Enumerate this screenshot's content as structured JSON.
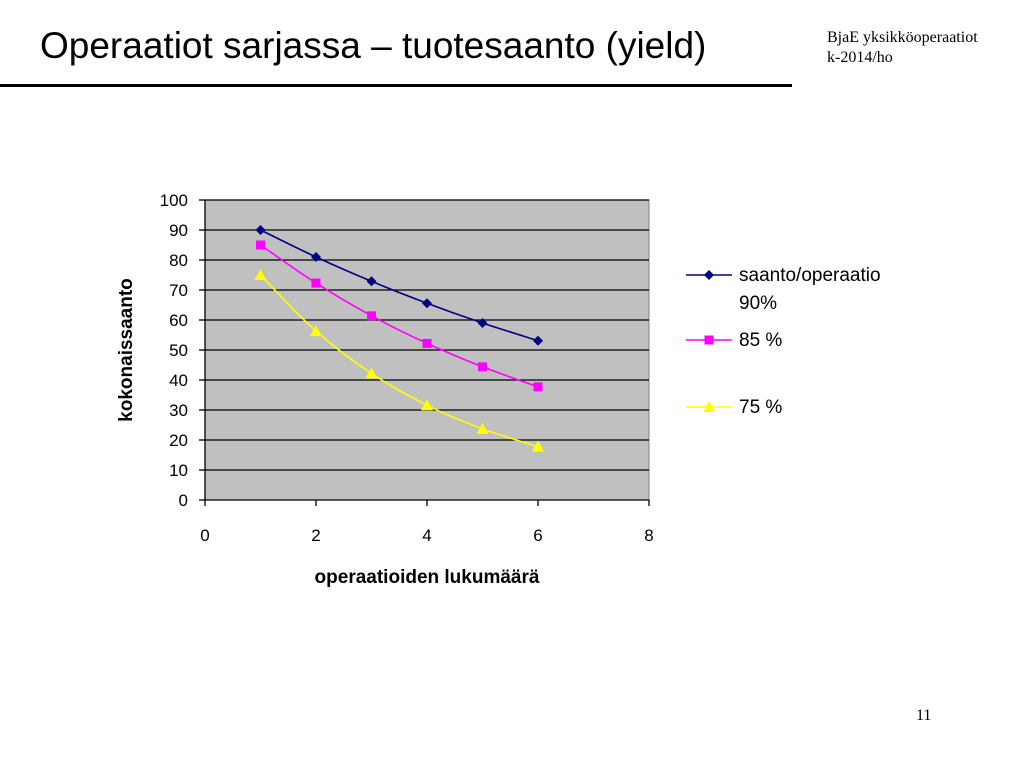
{
  "slide": {
    "title": "Operaatiot sarjassa – tuotesaanto (yield)",
    "note_line1": "BjaE yksikköoperaatiot",
    "note_line2": "k-2014/ho",
    "page_number": "11"
  },
  "chart_data": {
    "type": "line",
    "title": "",
    "xlabel": "operaatioiden lukumäärä",
    "ylabel": "kokonaissaanto",
    "xlim": [
      0,
      8
    ],
    "ylim": [
      0,
      100
    ],
    "xticks": [
      0,
      2,
      4,
      6,
      8
    ],
    "yticks": [
      0,
      10,
      20,
      30,
      40,
      50,
      60,
      70,
      80,
      90,
      100
    ],
    "grid": true,
    "plot_background": "#c0c0c0",
    "legend_position": "right",
    "x": [
      1,
      2,
      3,
      4,
      5,
      6
    ],
    "series": [
      {
        "name_lines": [
          "saanto/operaatio",
          "90%"
        ],
        "values": [
          90,
          81,
          72.9,
          65.6,
          59.0,
          53.1
        ],
        "color": "#000080",
        "marker": "diamond"
      },
      {
        "name_lines": [
          "85 %"
        ],
        "values": [
          85,
          72.3,
          61.4,
          52.2,
          44.4,
          37.7
        ],
        "color": "#ff00ff",
        "marker": "square"
      },
      {
        "name_lines": [
          "75 %"
        ],
        "values": [
          75,
          56.3,
          42.2,
          31.6,
          23.7,
          17.8
        ],
        "color": "#ffff00",
        "marker": "triangle"
      }
    ]
  }
}
